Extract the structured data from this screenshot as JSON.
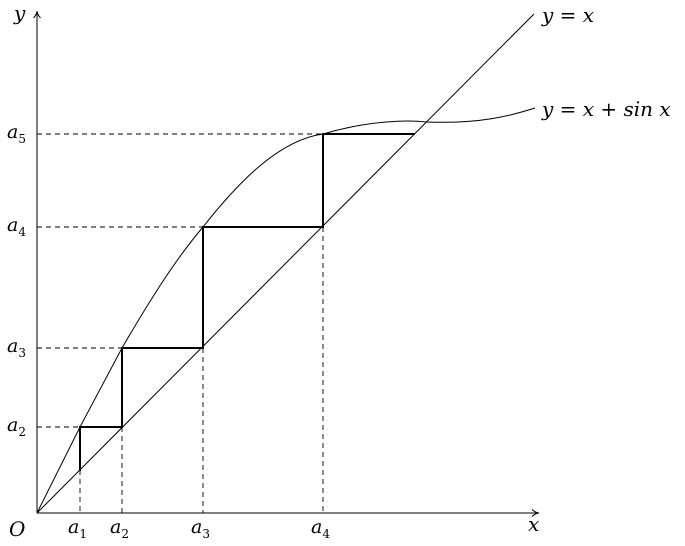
{
  "axes": {
    "x_label": "x",
    "y_label": "y",
    "origin_label": "O"
  },
  "curves": {
    "line_label": "y = x",
    "curve_label": "y = x + sin x"
  },
  "points": [
    {
      "base": "a",
      "sub": "1"
    },
    {
      "base": "a",
      "sub": "2"
    },
    {
      "base": "a",
      "sub": "3"
    },
    {
      "base": "a",
      "sub": "4"
    },
    {
      "base": "a",
      "sub": "5"
    }
  ]
}
